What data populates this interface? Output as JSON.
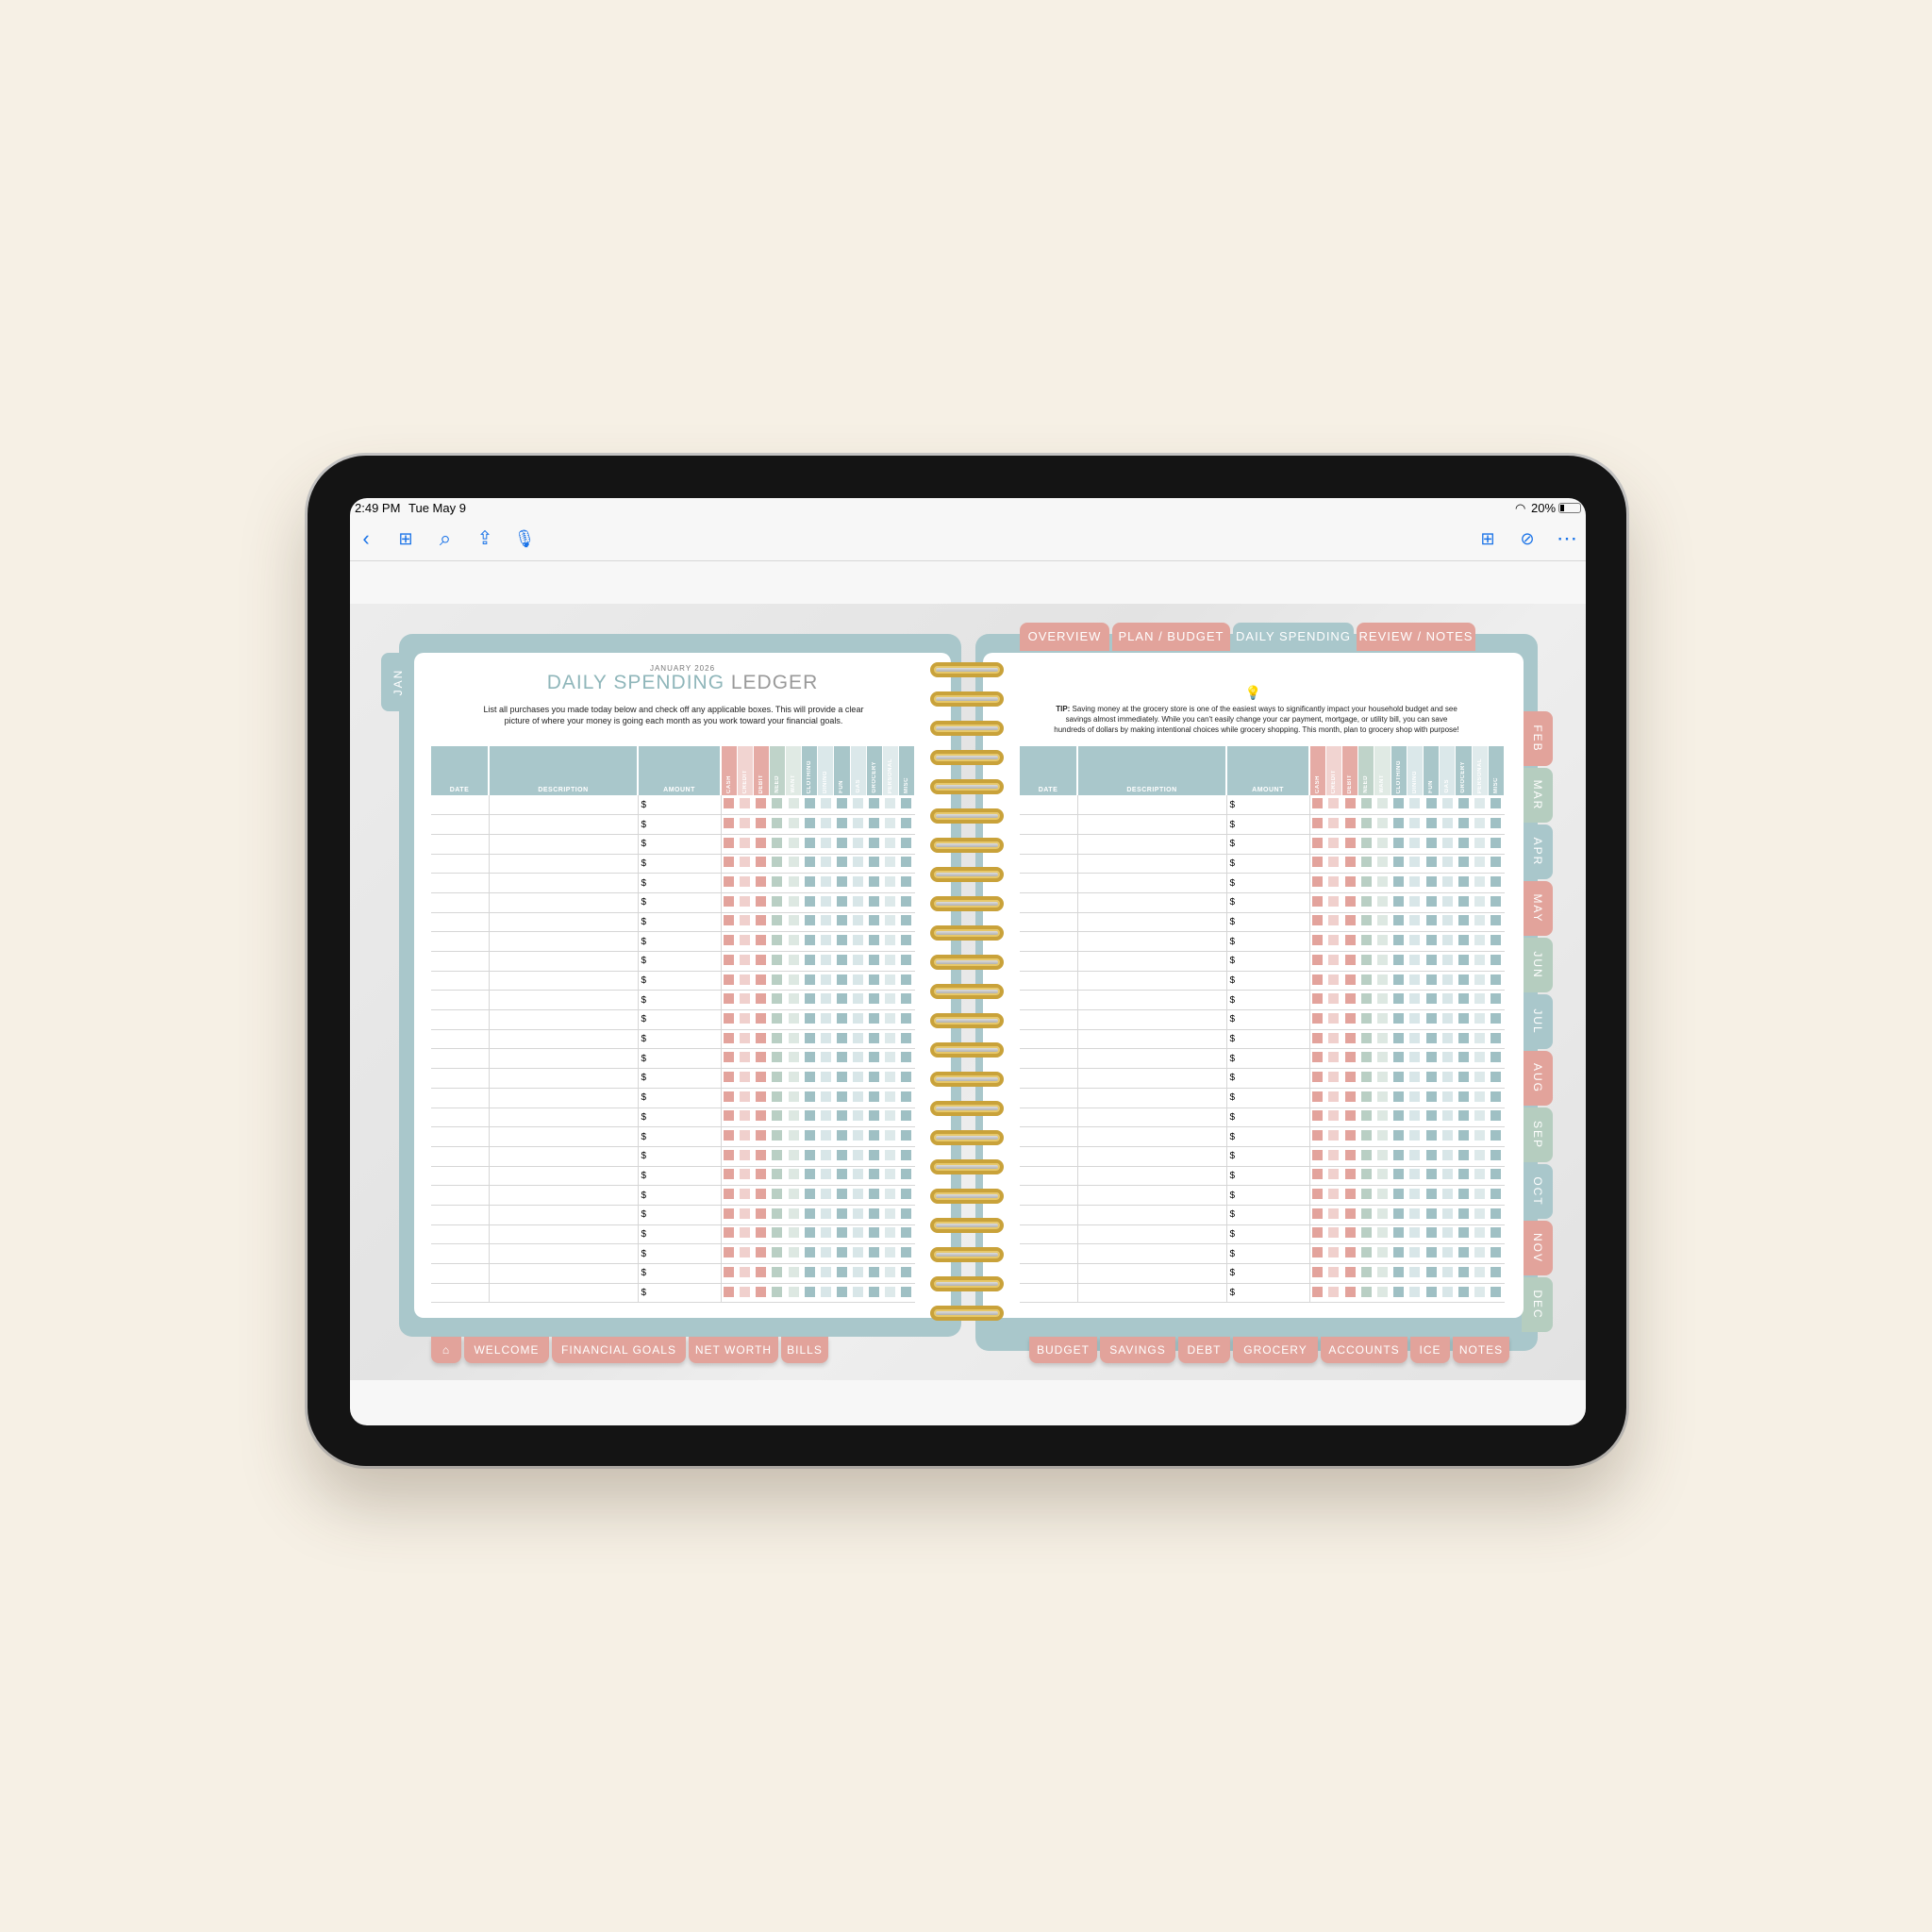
{
  "status_bar": {
    "time": "2:49 PM",
    "date": "Tue May 9",
    "battery": "20%"
  },
  "toolbar": {
    "icons": [
      "chevron-left-icon",
      "grid-icon",
      "search-icon",
      "share-icon",
      "microphone-icon",
      "add-page-icon",
      "markup-pen-icon",
      "more-icon"
    ]
  },
  "left_page": {
    "month_tab": "JAN",
    "subtitle": "JANUARY 2026",
    "title_part1": "DAILY SPENDING",
    "title_part2": "LEDGER",
    "instructions": "List all purchases you made today below and check off any applicable boxes. This will provide a clear picture of where your money is going each month as you work toward your financial goals."
  },
  "right_page": {
    "tip_label": "TIP:",
    "tip_text": " Saving money at the grocery store is one of the easiest ways to significantly impact your household budget and see savings almost immediately. While you can't easily change your car payment, mortgage, or utility bill, you can save hundreds of dollars by making intentional choices while grocery shopping. This month, plan to grocery shop with purpose!"
  },
  "table": {
    "headers": [
      "DATE",
      "DESCRIPTION",
      "AMOUNT"
    ],
    "amount_symbol": "$",
    "categories": [
      {
        "label": "CASH",
        "color": "#e3a39c"
      },
      {
        "label": "CREDIT",
        "color": "#f0d0cd"
      },
      {
        "label": "DEBIT",
        "color": "#e3a39c"
      },
      {
        "label": "NEED",
        "color": "#b9cfc4"
      },
      {
        "label": "WANT",
        "color": "#dde8e2"
      },
      {
        "label": "CLOTHING",
        "color": "#9fc0c4"
      },
      {
        "label": "DINING",
        "color": "#d8e6e8"
      },
      {
        "label": "FUN",
        "color": "#9fc0c4"
      },
      {
        "label": "GAS",
        "color": "#d8e6e8"
      },
      {
        "label": "GROCERY",
        "color": "#9fc0c4"
      },
      {
        "label": "PERSONAL",
        "color": "#dde9ea"
      },
      {
        "label": "MISC",
        "color": "#9fc0c4"
      }
    ]
  },
  "top_tabs": [
    {
      "label": "OVERVIEW",
      "color": "#e2a39b"
    },
    {
      "label": "PLAN / BUDGET",
      "color": "#e2a39b"
    },
    {
      "label": "DAILY SPENDING",
      "color": "#a9c7cb"
    },
    {
      "label": "REVIEW / NOTES",
      "color": "#e2a39b"
    }
  ],
  "month_tabs": [
    {
      "label": "FEB",
      "color": "#e2a39b"
    },
    {
      "label": "MAR",
      "color": "#b5cdbf"
    },
    {
      "label": "APR",
      "color": "#a9c7cb"
    },
    {
      "label": "MAY",
      "color": "#e2a39b"
    },
    {
      "label": "JUN",
      "color": "#b5cdbf"
    },
    {
      "label": "JUL",
      "color": "#a9c7cb"
    },
    {
      "label": "AUG",
      "color": "#e2a39b"
    },
    {
      "label": "SEP",
      "color": "#b5cdbf"
    },
    {
      "label": "OCT",
      "color": "#a9c7cb"
    },
    {
      "label": "NOV",
      "color": "#e2a39b"
    },
    {
      "label": "DEC",
      "color": "#b5cdbf"
    }
  ],
  "bottom_tabs_left": [
    "WELCOME",
    "FINANCIAL GOALS",
    "NET WORTH",
    "BILLS"
  ],
  "bottom_tabs_right": [
    "BUDGET",
    "SAVINGS",
    "DEBT",
    "GROCERY",
    "ACCOUNTS",
    "ICE",
    "NOTES"
  ],
  "colors": {
    "accent": "#1a73e8",
    "cover": "#a9c7cb",
    "pink": "#e2a39b",
    "sage": "#b5cdbf",
    "ring": "#c9a23a"
  }
}
